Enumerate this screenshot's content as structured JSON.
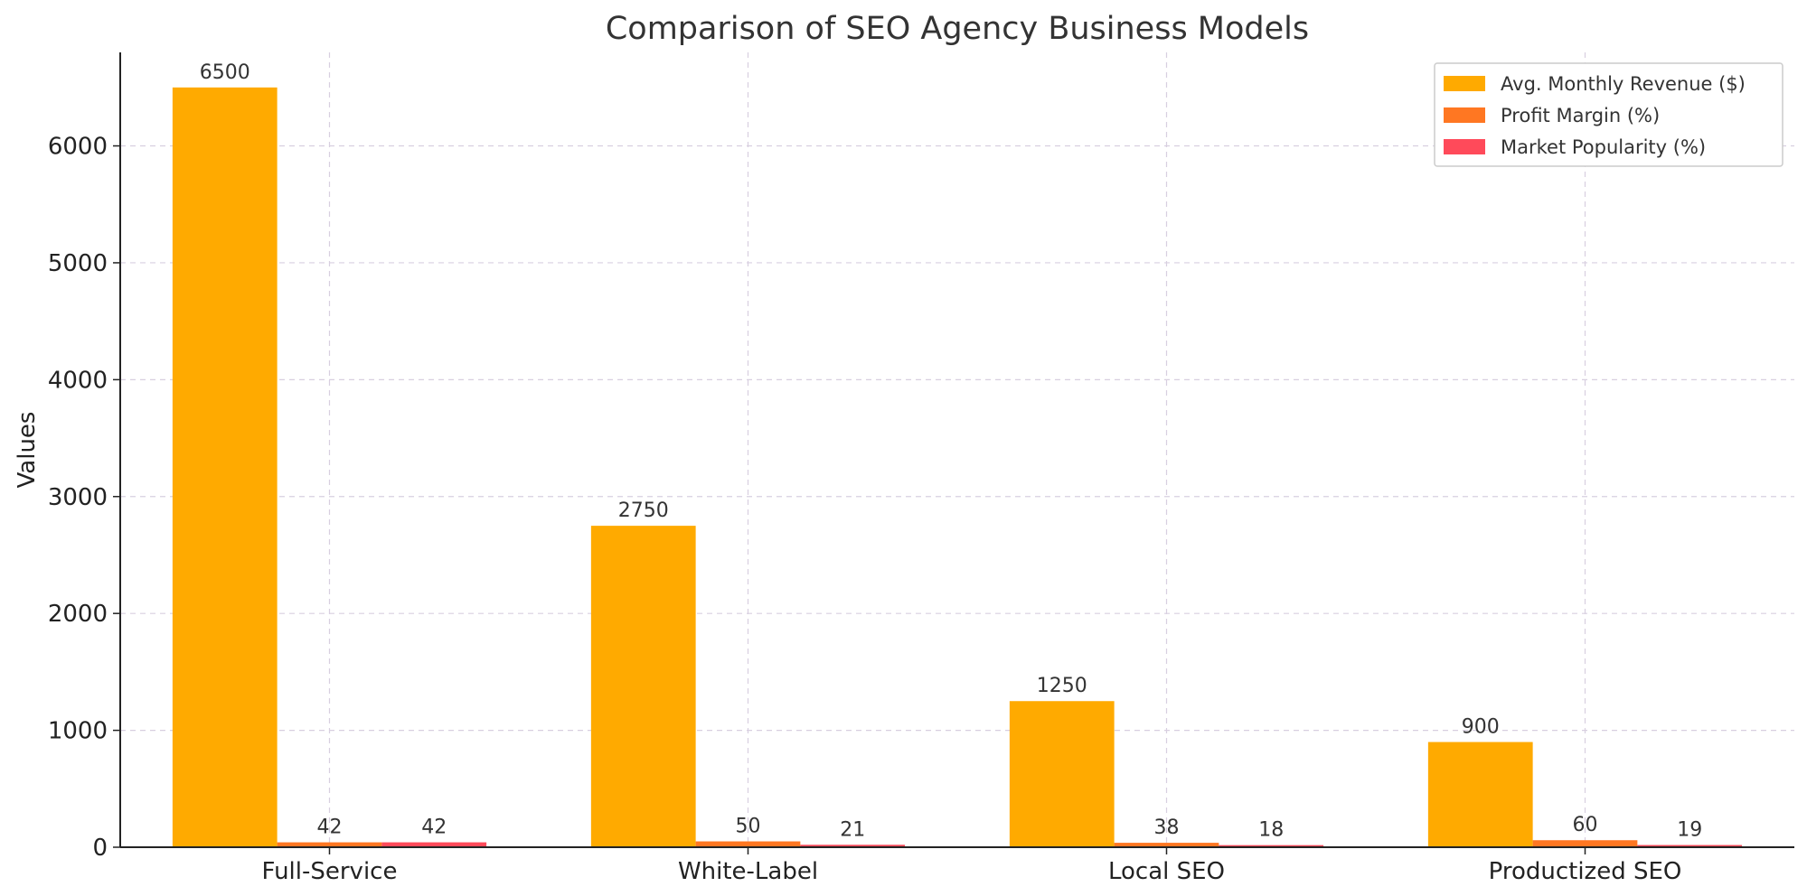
{
  "chart_data": {
    "type": "bar",
    "title": "Comparison of SEO Agency Business Models",
    "xlabel": "",
    "ylabel": "Values",
    "categories": [
      "Full-Service",
      "White-Label",
      "Local SEO",
      "Productized SEO"
    ],
    "series": [
      {
        "name": "Avg. Monthly Revenue ($)",
        "color": "#FFAA00",
        "values": [
          6500,
          2750,
          1250,
          900
        ]
      },
      {
        "name": "Profit Margin (%)",
        "color": "#FF7722",
        "values": [
          42,
          50,
          38,
          60
        ]
      },
      {
        "name": "Market Popularity (%)",
        "color": "#FF4A5A",
        "values": [
          42,
          21,
          18,
          19
        ]
      }
    ],
    "ylim": [
      0,
      6800
    ],
    "yticks": [
      0,
      1000,
      2000,
      3000,
      4000,
      5000,
      6000
    ],
    "grid": true,
    "legend_position": "top-right",
    "data_labels": true
  }
}
